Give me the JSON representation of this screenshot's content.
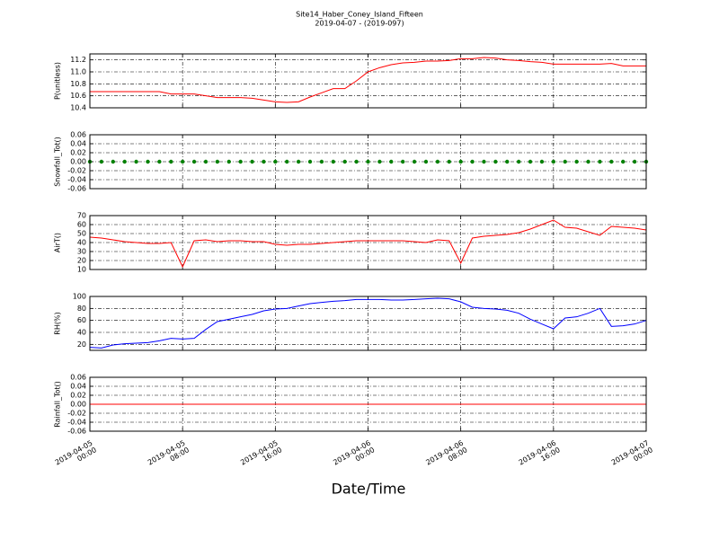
{
  "title": "Site14_Haber_Coney_Island_Fifteen",
  "subtitle": "2019-04-07 - (2019-097)",
  "x_label": "Date/Time",
  "x": [
    "2019-04-05 00:00",
    "2019-04-05 01:00",
    "2019-04-05 02:00",
    "2019-04-05 03:00",
    "2019-04-05 04:00",
    "2019-04-05 05:00",
    "2019-04-05 06:00",
    "2019-04-05 07:00",
    "2019-04-05 08:00",
    "2019-04-05 09:00",
    "2019-04-05 10:00",
    "2019-04-05 11:00",
    "2019-04-05 12:00",
    "2019-04-05 13:00",
    "2019-04-05 14:00",
    "2019-04-05 15:00",
    "2019-04-05 16:00",
    "2019-04-05 17:00",
    "2019-04-05 18:00",
    "2019-04-05 19:00",
    "2019-04-05 20:00",
    "2019-04-05 21:00",
    "2019-04-05 22:00",
    "2019-04-05 23:00",
    "2019-04-06 00:00",
    "2019-04-06 01:00",
    "2019-04-06 02:00",
    "2019-04-06 03:00",
    "2019-04-06 04:00",
    "2019-04-06 05:00",
    "2019-04-06 06:00",
    "2019-04-06 07:00",
    "2019-04-06 08:00",
    "2019-04-06 09:00",
    "2019-04-06 10:00",
    "2019-04-06 11:00",
    "2019-04-06 12:00",
    "2019-04-06 13:00",
    "2019-04-06 14:00",
    "2019-04-06 15:00",
    "2019-04-06 16:00",
    "2019-04-06 17:00",
    "2019-04-06 18:00",
    "2019-04-06 19:00",
    "2019-04-06 20:00",
    "2019-04-06 21:00",
    "2019-04-06 22:00",
    "2019-04-06 23:00",
    "2019-04-07 00:00"
  ],
  "xlim": [
    "2019-04-05 00:00",
    "2019-04-07 00:00"
  ],
  "xticks": [
    "2019-04-05 00:00",
    "2019-04-05 08:00",
    "2019-04-05 16:00",
    "2019-04-06 00:00",
    "2019-04-06 08:00",
    "2019-04-06 16:00",
    "2019-04-07 00:00"
  ],
  "chart_data": [
    {
      "type": "line",
      "y_label": "P(unitless)",
      "ylim": [
        10.4,
        11.3
      ],
      "yticks": [
        10.4,
        10.6,
        10.8,
        {
          "value": 11,
          "label": "11.0"
        },
        11.2
      ],
      "grid": true,
      "series": [
        {
          "color": "#ff0000",
          "values": [
            10.67,
            10.67,
            10.67,
            10.67,
            10.67,
            10.67,
            10.67,
            10.63,
            10.63,
            10.63,
            10.6,
            10.57,
            10.57,
            10.57,
            10.56,
            10.53,
            10.5,
            10.49,
            10.5,
            10.58,
            10.65,
            10.72,
            10.72,
            10.85,
            11.0,
            11.07,
            11.12,
            11.15,
            11.16,
            11.18,
            11.18,
            11.19,
            11.22,
            11.22,
            11.24,
            11.23,
            11.2,
            11.19,
            11.17,
            11.16,
            11.13,
            11.13,
            11.13,
            11.13,
            11.13,
            11.14,
            11.1,
            11.1,
            11.1
          ]
        }
      ]
    },
    {
      "type": "scatter",
      "y_label": "Snowfall_Tot()",
      "ylim": [
        -0.06,
        0.06
      ],
      "yticks": [
        -0.06,
        -0.04,
        -0.02,
        {
          "value": 0,
          "label": "0.00"
        },
        0.02,
        0.04,
        0.06
      ],
      "grid": true,
      "series": [
        {
          "color": "#008000",
          "values": [
            0,
            0,
            0,
            0,
            0,
            0,
            0,
            0,
            0,
            0,
            0,
            0,
            0,
            0,
            0,
            0,
            0,
            0,
            0,
            0,
            0,
            0,
            0,
            0,
            0,
            0,
            0,
            0,
            0,
            0,
            0,
            0,
            0,
            0,
            0,
            0,
            0,
            0,
            0,
            0,
            0,
            0,
            0,
            0,
            0,
            0,
            0,
            0,
            0
          ]
        }
      ]
    },
    {
      "type": "line",
      "y_label": "AirT()",
      "ylim": [
        10,
        70
      ],
      "yticks": [
        10,
        20,
        30,
        40,
        50,
        60,
        70
      ],
      "grid": true,
      "series": [
        {
          "color": "#ff0000",
          "values": [
            46,
            45,
            43,
            41,
            40,
            39,
            39,
            40,
            13,
            42,
            43,
            41,
            42,
            42,
            41,
            41,
            38,
            37,
            38,
            38,
            39,
            40,
            41,
            42,
            42,
            42,
            42,
            42,
            41,
            40,
            43,
            42,
            17,
            45,
            47,
            48,
            49,
            51,
            55,
            60,
            65,
            57,
            56,
            52,
            48,
            58,
            57,
            56,
            54
          ]
        }
      ]
    },
    {
      "type": "line",
      "y_label": "RH(%)",
      "ylim": [
        10,
        100
      ],
      "yticks": [
        20,
        40,
        60,
        80,
        100
      ],
      "grid": true,
      "series": [
        {
          "color": "#0000ff",
          "values": [
            15,
            14,
            19,
            21,
            22,
            23,
            26,
            30,
            29,
            30,
            45,
            58,
            62,
            66,
            70,
            76,
            79,
            80,
            84,
            88,
            90,
            92,
            93,
            95,
            95,
            95,
            94,
            94,
            95,
            96,
            97,
            96,
            91,
            82,
            80,
            79,
            77,
            72,
            62,
            54,
            46,
            64,
            66,
            72,
            80,
            50,
            51,
            54,
            60
          ]
        }
      ]
    },
    {
      "type": "line",
      "y_label": "Rainfall_Tot()",
      "ylim": [
        -0.06,
        0.06
      ],
      "yticks": [
        -0.06,
        -0.04,
        -0.02,
        {
          "value": 0,
          "label": "0.00"
        },
        0.02,
        0.04,
        0.06
      ],
      "grid": true,
      "series": [
        {
          "color": "#ff0000",
          "values": [
            0,
            0,
            0,
            0,
            0,
            0,
            0,
            0,
            0,
            0,
            0,
            0,
            0,
            0,
            0,
            0,
            0,
            0,
            0,
            0,
            0,
            0,
            0,
            0,
            0,
            0,
            0,
            0,
            0,
            0,
            0,
            0,
            0,
            0,
            0,
            0,
            0,
            0,
            0,
            0,
            0,
            0,
            0,
            0,
            0,
            0,
            0,
            0,
            0
          ]
        }
      ]
    }
  ]
}
